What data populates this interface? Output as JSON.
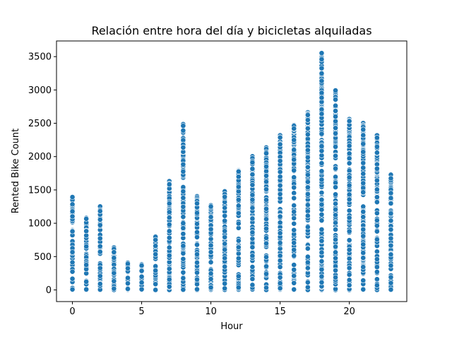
{
  "chart_data": {
    "type": "scatter",
    "title": "Relación entre hora del día y bicicletas alquiladas",
    "xlabel": "Hour",
    "ylabel": "Rented Bike Count",
    "xlim": [
      -1.15,
      24.15
    ],
    "ylim": [
      -175,
      3735
    ],
    "x_ticks": [
      0,
      5,
      10,
      15,
      20
    ],
    "y_ticks": [
      0,
      500,
      1000,
      1500,
      2000,
      2500,
      3000,
      3500
    ],
    "grid": false,
    "marker_color": "#1f77b4",
    "marker_edge": "#ffffff",
    "hour_max": [
      {
        "hour": 0,
        "max": 1394
      },
      {
        "hour": 1,
        "max": 1080
      },
      {
        "hour": 2,
        "max": 1252
      },
      {
        "hour": 3,
        "max": 636
      },
      {
        "hour": 4,
        "max": 411
      },
      {
        "hour": 5,
        "max": 382
      },
      {
        "hour": 6,
        "max": 803
      },
      {
        "hour": 7,
        "max": 1631
      },
      {
        "hour": 8,
        "max": 2487
      },
      {
        "hour": 9,
        "max": 1404
      },
      {
        "hour": 10,
        "max": 1274
      },
      {
        "hour": 11,
        "max": 1479
      },
      {
        "hour": 12,
        "max": 1797
      },
      {
        "hour": 13,
        "max": 2004
      },
      {
        "hour": 14,
        "max": 2137
      },
      {
        "hour": 15,
        "max": 2327
      },
      {
        "hour": 16,
        "max": 2478
      },
      {
        "hour": 17,
        "max": 2664
      },
      {
        "hour": 18,
        "max": 3556
      },
      {
        "hour": 19,
        "max": 2996
      },
      {
        "hour": 20,
        "max": 2566
      },
      {
        "hour": 21,
        "max": 2503
      },
      {
        "hour": 22,
        "max": 2319
      },
      {
        "hour": 23,
        "max": 1734
      }
    ],
    "dense_upper_fraction": 0.72
  }
}
